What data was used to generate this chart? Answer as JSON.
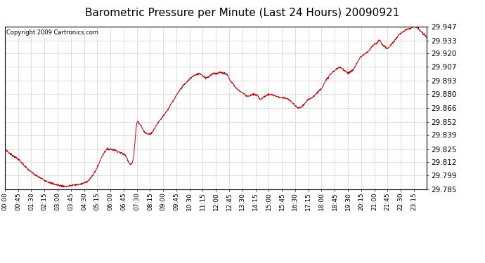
{
  "title": "Barometric Pressure per Minute (Last 24 Hours) 20090921",
  "copyright": "Copyright 2009 Cartronics.com",
  "line_color": "#cc0000",
  "bg_color": "#ffffff",
  "plot_bg_color": "#ffffff",
  "grid_color": "#b0b0b0",
  "title_fontsize": 11,
  "yticks": [
    29.785,
    29.799,
    29.812,
    29.825,
    29.839,
    29.852,
    29.866,
    29.88,
    29.893,
    29.907,
    29.92,
    29.933,
    29.947
  ],
  "xtick_labels": [
    "00:00",
    "00:45",
    "01:30",
    "02:15",
    "03:00",
    "03:45",
    "04:30",
    "05:15",
    "06:00",
    "06:45",
    "07:30",
    "08:15",
    "09:00",
    "09:45",
    "10:30",
    "11:15",
    "12:00",
    "12:45",
    "13:30",
    "14:15",
    "15:00",
    "15:45",
    "16:30",
    "17:15",
    "18:00",
    "18:45",
    "19:30",
    "20:15",
    "21:00",
    "21:45",
    "22:30",
    "23:15"
  ],
  "ylim": [
    29.785,
    29.947
  ],
  "num_points": 1440
}
